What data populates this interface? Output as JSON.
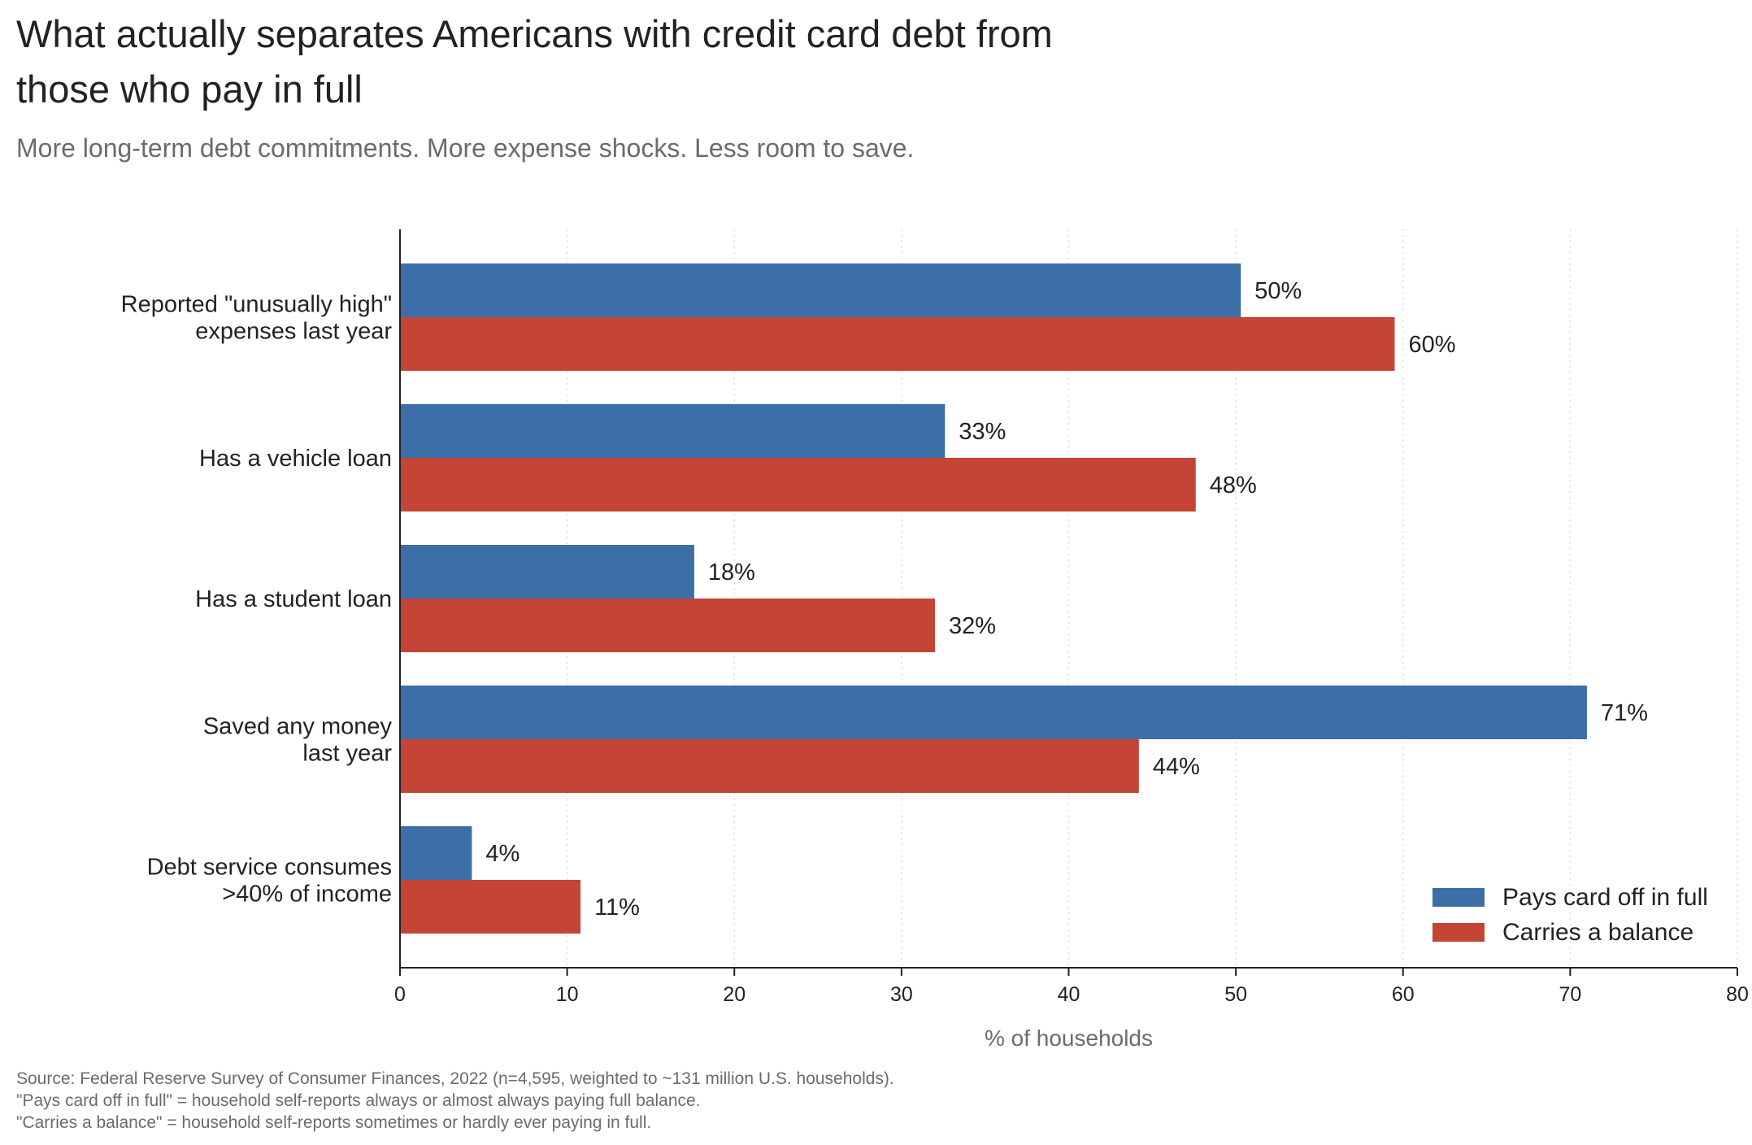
{
  "title": "What actually separates Americans with credit card debt from those who pay in full",
  "subtitle": "More long-term debt commitments. More expense shocks. Less room to save.",
  "colors": {
    "series_full": "#3c6ea8",
    "series_balance": "#c44536"
  },
  "chart_data": {
    "type": "bar",
    "orientation": "horizontal",
    "categories": [
      [
        "Reported \"unusually high\"",
        "expenses last year"
      ],
      [
        "Has a vehicle loan"
      ],
      [
        "Has a student loan"
      ],
      [
        "Saved any money",
        "last year"
      ],
      [
        "Debt service consumes",
        ">40% of income"
      ]
    ],
    "series": [
      {
        "name": "Pays card off in full",
        "values": [
          50.3,
          32.6,
          17.6,
          71.0,
          4.3
        ],
        "labels": [
          "50%",
          "33%",
          "18%",
          "71%",
          "4%"
        ]
      },
      {
        "name": "Carries a balance",
        "values": [
          59.5,
          47.6,
          32.0,
          44.2,
          10.8
        ],
        "labels": [
          "60%",
          "48%",
          "32%",
          "44%",
          "11%"
        ]
      }
    ],
    "xlabel": "% of households",
    "xlim": [
      0,
      80
    ],
    "xticks": [
      0,
      10,
      20,
      30,
      40,
      50,
      60,
      70,
      80
    ],
    "grid": "vertical dotted",
    "legend": "bottom-right"
  },
  "footer": [
    "Source: Federal Reserve Survey of Consumer Finances, 2022 (n=4,595, weighted to ~131 million U.S. households).",
    "\"Pays card off in full\" = household self-reports always or almost always paying full balance.",
    "\"Carries a balance\" = household self-reports sometimes or hardly ever paying in full."
  ]
}
